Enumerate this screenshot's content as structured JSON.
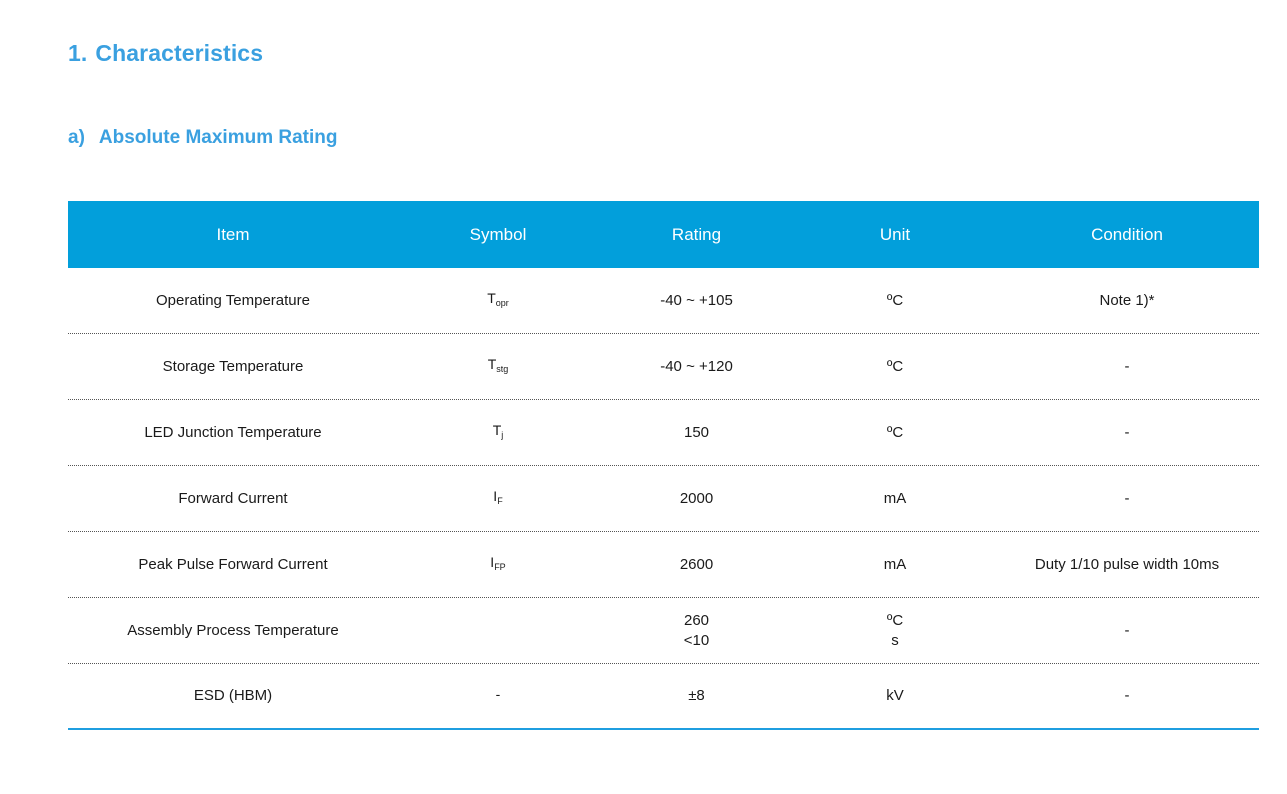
{
  "section": {
    "number": "1.",
    "title": "Characteristics"
  },
  "subsection": {
    "number": "a)",
    "title": "Absolute Maximum Rating"
  },
  "table": {
    "headers": [
      "Item",
      "Symbol",
      "Rating",
      "Unit",
      "Condition"
    ],
    "rows": [
      {
        "item": "Operating Temperature",
        "symbol_main": "T",
        "symbol_sub": "opr",
        "rating": [
          "-40 ~ +105"
        ],
        "unit": [
          "ºC"
        ],
        "condition": "Note 1)*"
      },
      {
        "item": "Storage Temperature",
        "symbol_main": "T",
        "symbol_sub": "stg",
        "rating": [
          "-40 ~ +120"
        ],
        "unit": [
          "ºC"
        ],
        "condition": "-"
      },
      {
        "item": "LED Junction Temperature",
        "symbol_main": "T",
        "symbol_sub": "j",
        "rating": [
          "150"
        ],
        "unit": [
          "ºC"
        ],
        "condition": "-"
      },
      {
        "item": "Forward Current",
        "symbol_main": "I",
        "symbol_sub": "F",
        "rating": [
          "2000"
        ],
        "unit": [
          "mA"
        ],
        "condition": "-"
      },
      {
        "item": "Peak Pulse Forward Current",
        "symbol_main": "I",
        "symbol_sub": "FP",
        "rating": [
          "2600"
        ],
        "unit": [
          "mA"
        ],
        "condition": "Duty 1/10 pulse width 10ms"
      },
      {
        "item": "Assembly Process Temperature",
        "symbol_main": "",
        "symbol_sub": "",
        "rating": [
          "260",
          "<10"
        ],
        "unit": [
          "ºC",
          "s"
        ],
        "condition": "-"
      },
      {
        "item": "ESD (HBM)",
        "symbol_main": "-",
        "symbol_sub": "",
        "rating": [
          "±8"
        ],
        "unit": [
          "kV"
        ],
        "condition": "-"
      }
    ]
  },
  "colors": {
    "heading": "#3aa0e0",
    "header_bg": "#029fdb",
    "header_text": "#ffffff"
  }
}
